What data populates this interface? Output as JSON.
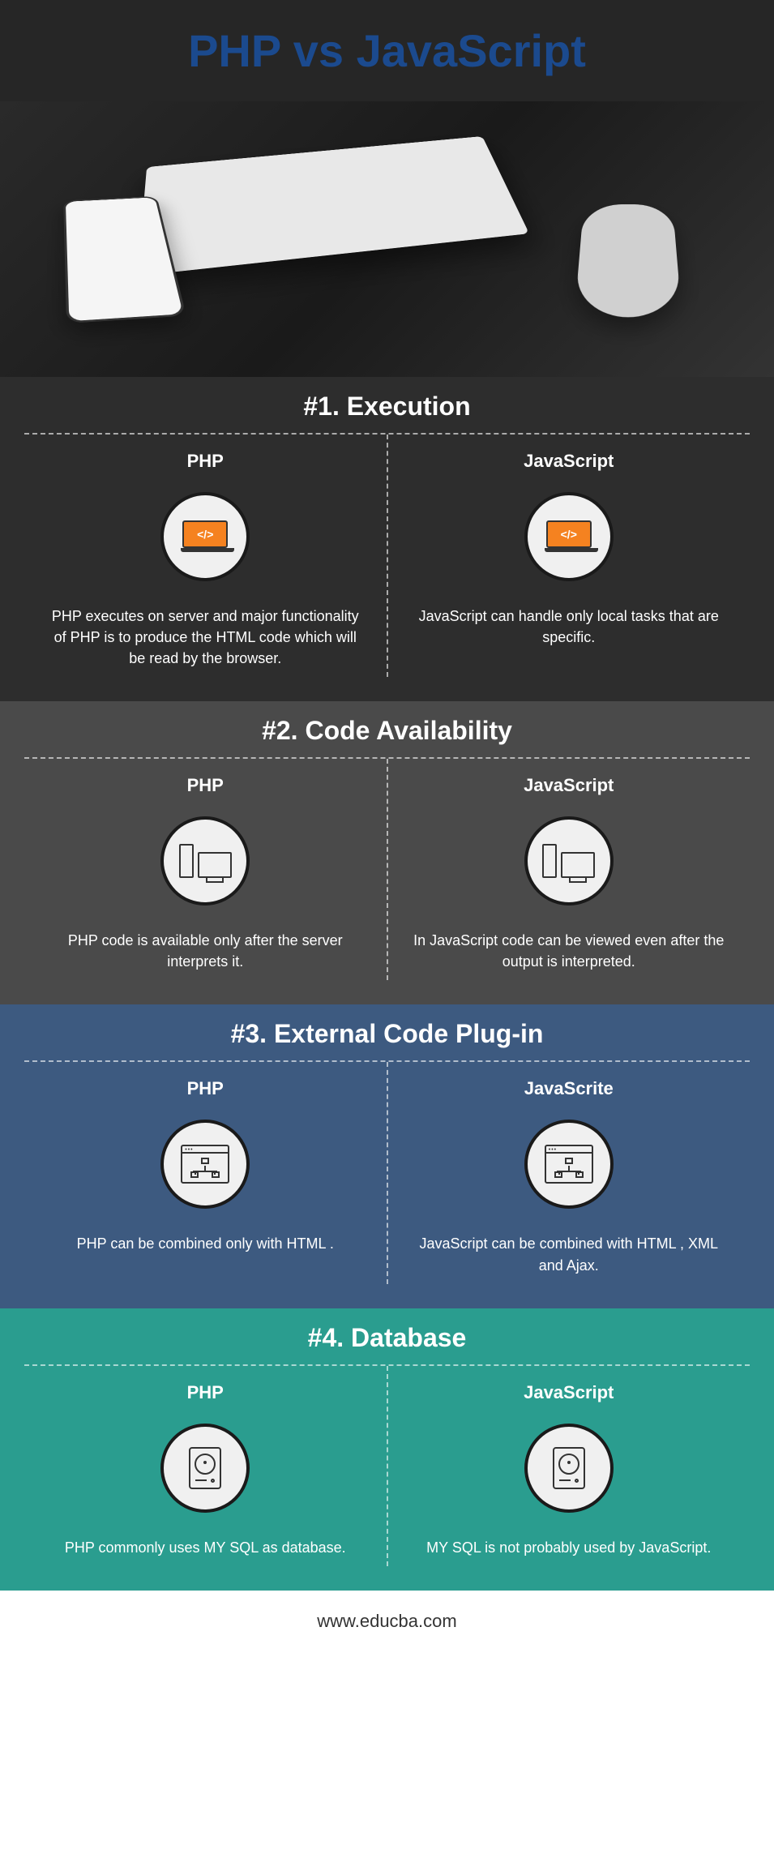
{
  "title": "PHP vs JavaScript",
  "title_color": "#1b4a8e",
  "title_bg": "rgba(0,0,0,0.85)",
  "sections": [
    {
      "title": "#1. Execution",
      "bg_color": "#2d2d2d",
      "left_label": "PHP",
      "left_text": "PHP executes on server and major functionality\nof PHP is to produce the HTML code which will be read by the browser.",
      "left_icon": "laptop-code",
      "right_label": "JavaScript",
      "right_text": "JavaScript can handle only local tasks that are specific.",
      "right_icon": "laptop-code"
    },
    {
      "title": "#2. Code Availability",
      "bg_color": "#4a4a4a",
      "left_label": "PHP",
      "left_text": "PHP code is available only after the server interprets it.",
      "left_icon": "server-monitor",
      "right_label": "JavaScript",
      "right_text": "In JavaScript code can be viewed even after the output is interpreted.",
      "right_icon": "server-monitor"
    },
    {
      "title": "#3. External Code Plug-in",
      "bg_color": "#3d5a80",
      "left_label": "PHP",
      "left_text": "PHP can be combined only with HTML .",
      "left_icon": "window-tree",
      "right_label": "JavaScrite",
      "right_text": "JavaScript can be combined with HTML , XML and Ajax.",
      "right_icon": "window-tree"
    },
    {
      "title": "#4. Database",
      "bg_color": "#2a9d8f",
      "left_label": "PHP",
      "left_text": "PHP commonly uses MY SQL as database.",
      "left_icon": "drive",
      "right_label": "JavaScript",
      "right_text": "MY SQL is not probably used by JavaScript.",
      "right_icon": "drive"
    }
  ],
  "footer_text": "www.educba.com"
}
